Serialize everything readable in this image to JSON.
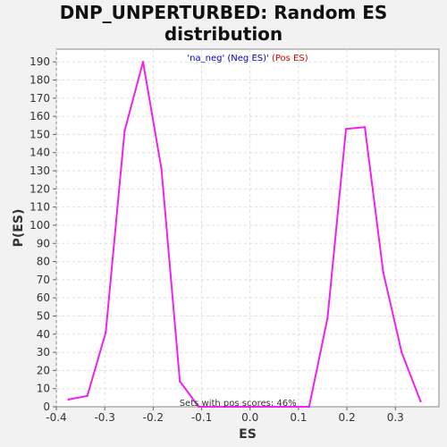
{
  "chart_data": {
    "type": "line",
    "title_line1": "DNP_UNPERTURBED: Random ES",
    "title_line2": "distribution",
    "xlabel": "ES",
    "ylabel": "P(ES)",
    "xlim": [
      -0.4,
      0.39
    ],
    "ylim": [
      0,
      197
    ],
    "x_ticks": [
      -0.4,
      -0.3,
      -0.2,
      -0.1,
      0.0,
      0.1,
      0.2,
      0.3
    ],
    "x_tick_labels": [
      "-0.4",
      "-0.3",
      "-0.2",
      "-0.1",
      "0.0",
      "0.1",
      "0.2",
      "0.3"
    ],
    "y_ticks": [
      0,
      10,
      20,
      30,
      40,
      50,
      60,
      70,
      80,
      90,
      100,
      110,
      120,
      130,
      140,
      150,
      160,
      170,
      180,
      190
    ],
    "grid": true,
    "legend": {
      "neg_label": "'na_neg' (Neg ES)'",
      "pos_label": " (Pos ES)",
      "neg_color": "#0000cc",
      "pos_color": "#dd0000",
      "placement": "top-center"
    },
    "annotation": "Sets with pos scores: 46%",
    "line_color": "#ee22ee",
    "series": [
      {
        "x": [
          -0.375,
          -0.336,
          -0.298,
          -0.259,
          -0.221,
          -0.183,
          -0.145,
          -0.106,
          0.122,
          0.16,
          0.198,
          0.237,
          0.275,
          0.313,
          0.352
        ],
        "y": [
          4,
          6,
          41,
          152,
          190,
          131,
          14,
          0,
          0,
          49,
          153,
          154,
          74,
          30,
          3
        ]
      }
    ]
  }
}
